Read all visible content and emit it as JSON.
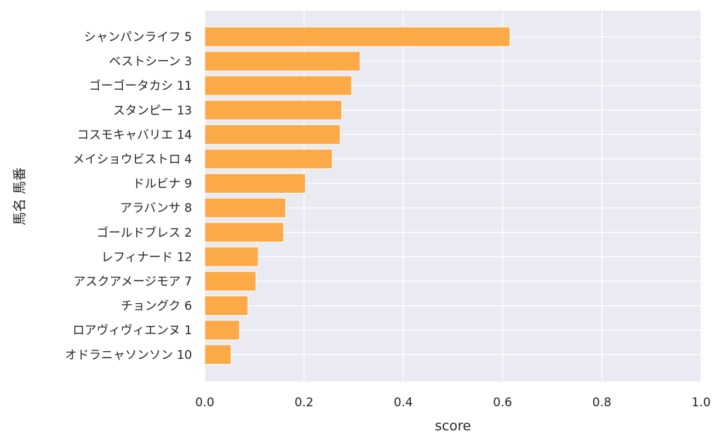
{
  "chart_data": {
    "type": "bar",
    "orientation": "horizontal",
    "title": "",
    "xlabel": "score",
    "ylabel": "馬名 馬番",
    "xlim": [
      0.0,
      1.0
    ],
    "xticks": [
      "0.0",
      "0.2",
      "0.4",
      "0.6",
      "0.8",
      "1.0"
    ],
    "grid": true,
    "bar_color": "#ff9f2a",
    "background_color": "#eaeaf2",
    "categories": [
      "シャンパンライフ 5",
      "ベストシーン 3",
      "ゴーゴータカシ 11",
      "スタンピー 13",
      "コスモキャバリエ 14",
      "メイショウビストロ 4",
      "ドルビナ 9",
      "アラバンサ 8",
      "ゴールドブレス 2",
      "レフィナード 12",
      "アスクアメージモア 7",
      "チョングク 6",
      "ロアヴィヴィエンヌ 1",
      "オドラニャソンソン 10"
    ],
    "values": [
      0.615,
      0.313,
      0.296,
      0.276,
      0.273,
      0.257,
      0.203,
      0.163,
      0.159,
      0.108,
      0.103,
      0.087,
      0.07,
      0.053
    ]
  }
}
